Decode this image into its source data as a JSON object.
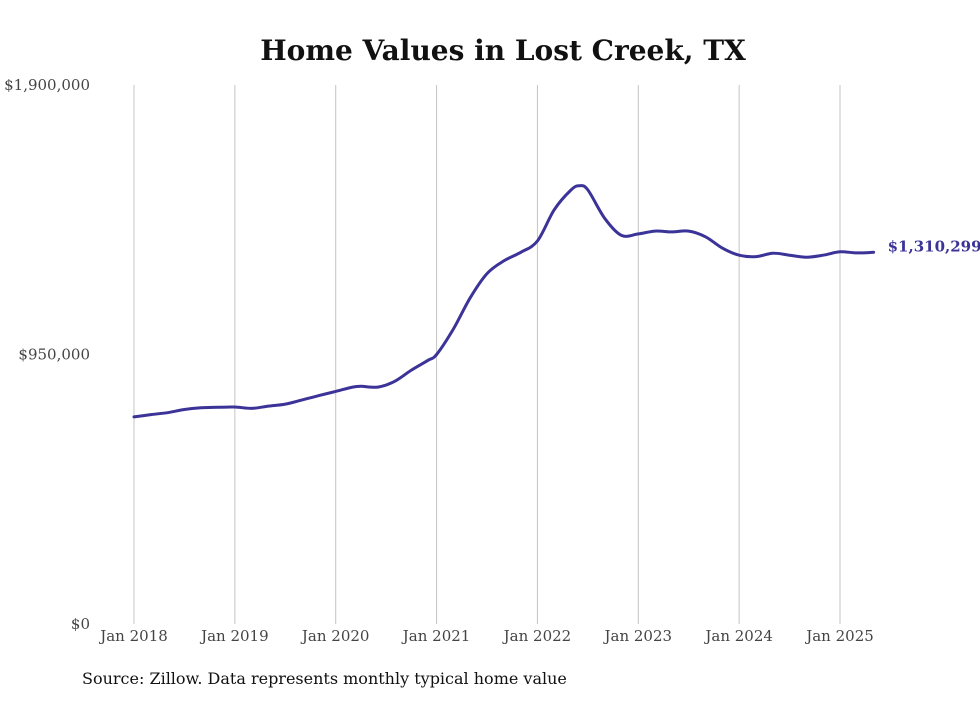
{
  "chart_data": {
    "type": "line",
    "title": "Home Values in Lost Creek, TX",
    "xlabel": "",
    "ylabel": "",
    "ylim": [
      0,
      1900000
    ],
    "y_ticks": [
      {
        "value": 0,
        "label": "$0"
      },
      {
        "value": 950000,
        "label": "$950,000"
      },
      {
        "value": 1900000,
        "label": "$1,900,000"
      }
    ],
    "x_ticks": [
      {
        "value": 2018.0,
        "label": "Jan 2018"
      },
      {
        "value": 2019.0,
        "label": "Jan 2019"
      },
      {
        "value": 2020.0,
        "label": "Jan 2020"
      },
      {
        "value": 2021.0,
        "label": "Jan 2021"
      },
      {
        "value": 2022.0,
        "label": "Jan 2022"
      },
      {
        "value": 2023.0,
        "label": "Jan 2023"
      },
      {
        "value": 2024.0,
        "label": "Jan 2024"
      },
      {
        "value": 2025.0,
        "label": "Jan 2025"
      }
    ],
    "xlim": [
      2018.0,
      2025.4167
    ],
    "grid": "vertical",
    "line_color": "#3b3397",
    "series": [
      {
        "name": "",
        "x": [
          2018.0,
          2018.1667,
          2018.3333,
          2018.5,
          2018.6667,
          2018.8333,
          2019.0,
          2019.1667,
          2019.3333,
          2019.5,
          2019.6667,
          2019.8333,
          2020.0,
          2020.1667,
          2020.25,
          2020.4167,
          2020.5833,
          2020.75,
          2020.9167,
          2021.0,
          2021.1667,
          2021.3333,
          2021.5,
          2021.6667,
          2021.8333,
          2022.0,
          2022.1667,
          2022.3333,
          2022.4167,
          2022.5,
          2022.6667,
          2022.8333,
          2023.0,
          2023.1667,
          2023.3333,
          2023.5,
          2023.6667,
          2023.8333,
          2024.0,
          2024.1667,
          2024.3333,
          2024.5,
          2024.6667,
          2024.8333,
          2025.0,
          2025.1667,
          2025.3333
        ],
        "y": [
          730000,
          738000,
          745000,
          756000,
          762000,
          764000,
          765000,
          760000,
          768000,
          775000,
          790000,
          805000,
          820000,
          835000,
          838000,
          835000,
          855000,
          895000,
          930000,
          950000,
          1040000,
          1150000,
          1235000,
          1280000,
          1310000,
          1350000,
          1460000,
          1530000,
          1545000,
          1530000,
          1430000,
          1370000,
          1375000,
          1385000,
          1382000,
          1385000,
          1365000,
          1325000,
          1300000,
          1295000,
          1307000,
          1300000,
          1293000,
          1300000,
          1312000,
          1308000,
          1310299
        ]
      }
    ],
    "end_label": "$1,310,299",
    "source": "Source: Zillow. Data represents monthly typical home value"
  }
}
